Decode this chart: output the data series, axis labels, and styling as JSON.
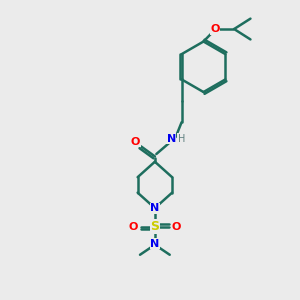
{
  "bg_color": "#ebebeb",
  "bond_color": "#1e6e5e",
  "atom_colors": {
    "O": "#ff0000",
    "N": "#0000ee",
    "S": "#cccc00",
    "H": "#608080",
    "C": "#1e6e5e"
  },
  "figsize": [
    3.0,
    3.0
  ],
  "dpi": 100,
  "xlim": [
    0,
    10
  ],
  "ylim": [
    0,
    10
  ]
}
